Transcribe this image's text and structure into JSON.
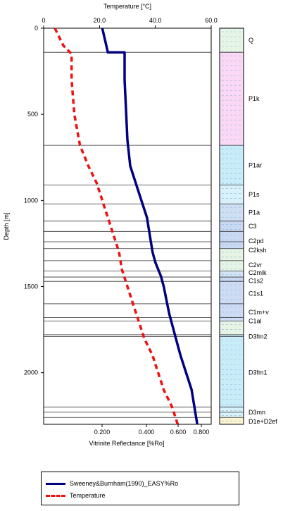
{
  "chart_data": {
    "type": "line",
    "title": "",
    "top_axis": {
      "label": "Temperature [°C]",
      "range": [
        0,
        60
      ],
      "ticks": [
        "0",
        "20.0",
        "40.0",
        "60.0"
      ]
    },
    "bottom_axis": {
      "label": "Vitrinite Reflectance [%Ro]",
      "ticks": [
        "0.200",
        "0.400",
        "0.600",
        "0.800"
      ]
    },
    "y_axis": {
      "label": "Depth [m]",
      "range": [
        0,
        2300
      ],
      "reversed": true,
      "ticks": [
        "0",
        "500",
        "1000",
        "1500",
        "2000"
      ]
    },
    "series": [
      {
        "name": "Sweeney&Burnham(1990)_EASY%Ro",
        "color": "#000080",
        "style": "solid",
        "points": [
          [
            21,
            0
          ],
          [
            23,
            140
          ],
          [
            29,
            140
          ],
          [
            29,
            300
          ],
          [
            30,
            650
          ],
          [
            31,
            800
          ],
          [
            33,
            900
          ],
          [
            35,
            1000
          ],
          [
            37,
            1100
          ],
          [
            38,
            1200
          ],
          [
            39,
            1300
          ],
          [
            40,
            1360
          ],
          [
            42,
            1440
          ],
          [
            43,
            1500
          ],
          [
            44,
            1580
          ],
          [
            45,
            1660
          ],
          [
            46,
            1720
          ],
          [
            47,
            1780
          ],
          [
            49,
            1900
          ],
          [
            51,
            2000
          ],
          [
            53,
            2100
          ],
          [
            54,
            2200
          ],
          [
            55,
            2300
          ]
        ]
      },
      {
        "name": "Temperature",
        "color": "#ee1111",
        "style": "dashed",
        "points": [
          [
            4,
            0
          ],
          [
            7,
            100
          ],
          [
            10,
            150
          ],
          [
            10,
            300
          ],
          [
            11,
            500
          ],
          [
            13,
            680
          ],
          [
            16,
            800
          ],
          [
            19,
            900
          ],
          [
            21,
            1000
          ],
          [
            23,
            1100
          ],
          [
            25,
            1200
          ],
          [
            27,
            1300
          ],
          [
            28,
            1400
          ],
          [
            30,
            1500
          ],
          [
            32,
            1600
          ],
          [
            34,
            1700
          ],
          [
            36,
            1800
          ],
          [
            39,
            1900
          ],
          [
            41,
            2000
          ],
          [
            43,
            2100
          ],
          [
            46,
            2200
          ],
          [
            48,
            2300
          ]
        ]
      }
    ],
    "depth_lines": [
      140,
      680,
      910,
      1020,
      1120,
      1180,
      1240,
      1280,
      1350,
      1410,
      1445,
      1470,
      1600,
      1680,
      1700,
      1780,
      1790,
      2200,
      2230,
      2260
    ],
    "formations": [
      {
        "name": "Q",
        "top": 0,
        "bottom": 140,
        "fill": "#e6f5e6",
        "label_depth": 70
      },
      {
        "name": "P1k",
        "top": 140,
        "bottom": 680,
        "fill": "#fbd9f6",
        "label_depth": 410
      },
      {
        "name": "P1ar",
        "top": 680,
        "bottom": 910,
        "fill": "#c8ecf8",
        "label_depth": 795
      },
      {
        "name": "P1s",
        "top": 910,
        "bottom": 1020,
        "fill": "#d9f1fa",
        "label_depth": 965
      },
      {
        "name": "P1a",
        "top": 1020,
        "bottom": 1120,
        "fill": "#cfe0f4",
        "label_depth": 1070
      },
      {
        "name": "C3",
        "top": 1120,
        "bottom": 1180,
        "fill": "#c9d8f2",
        "label_depth": 1150
      },
      {
        "name": "C2pd",
        "top": 1180,
        "bottom": 1280,
        "fill": "#cad9f3",
        "label_depth": 1235
      },
      {
        "name": "C2ksh",
        "top": 1280,
        "bottom": 1350,
        "fill": "#e6f4e6",
        "label_depth": 1290
      },
      {
        "name": "C2vr",
        "top": 1350,
        "bottom": 1410,
        "fill": "#e6f4e6",
        "label_depth": 1375
      },
      {
        "name": "C2mlk",
        "top": 1410,
        "bottom": 1445,
        "fill": "#d3e4f6",
        "label_depth": 1420
      },
      {
        "name": "C1s2",
        "top": 1445,
        "bottom": 1470,
        "fill": "#c9d8f2",
        "label_depth": 1468
      },
      {
        "name": "C1s1",
        "top": 1470,
        "bottom": 1600,
        "fill": "#cddcf4",
        "label_depth": 1540
      },
      {
        "name": "C1m+v",
        "top": 1600,
        "bottom": 1700,
        "fill": "#cddcf4",
        "label_depth": 1650
      },
      {
        "name": "C1al",
        "top": 1700,
        "bottom": 1780,
        "fill": "#e6f4e6",
        "label_depth": 1700
      },
      {
        "name": "D3fm2",
        "top": 1780,
        "bottom": 1790,
        "fill": "#c8ecf8",
        "label_depth": 1790
      },
      {
        "name": "D3fm1",
        "top": 1790,
        "bottom": 2200,
        "fill": "#c8ecf8",
        "label_depth": 2000
      },
      {
        "name": "D3mn",
        "top": 2200,
        "bottom": 2260,
        "fill": "#d9f1fa",
        "label_depth": 2230
      },
      {
        "name": "D1e+D2ef",
        "top": 2260,
        "bottom": 2300,
        "fill": "#fbf3d2",
        "label_depth": 2283
      }
    ],
    "legend": [
      {
        "label": "Sweeney&Burnham(1990)_EASY%Ro",
        "color": "#000080",
        "style": "solid"
      },
      {
        "label": "Temperature",
        "color": "#ee1111",
        "style": "dashed"
      }
    ]
  }
}
